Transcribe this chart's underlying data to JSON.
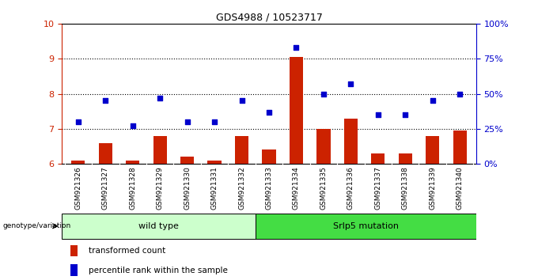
{
  "title": "GDS4988 / 10523717",
  "samples": [
    "GSM921326",
    "GSM921327",
    "GSM921328",
    "GSM921329",
    "GSM921330",
    "GSM921331",
    "GSM921332",
    "GSM921333",
    "GSM921334",
    "GSM921335",
    "GSM921336",
    "GSM921337",
    "GSM921338",
    "GSM921339",
    "GSM921340"
  ],
  "bar_values": [
    6.1,
    6.6,
    6.1,
    6.8,
    6.2,
    6.1,
    6.8,
    6.4,
    9.05,
    7.0,
    7.3,
    6.3,
    6.3,
    6.8,
    6.95
  ],
  "scatter_pct": [
    30,
    45,
    27,
    47,
    30,
    30,
    45,
    37,
    83,
    50,
    57,
    35,
    35,
    45,
    50
  ],
  "bar_color": "#cc2200",
  "scatter_color": "#0000cc",
  "ylim_left": [
    6,
    10
  ],
  "ylim_right": [
    0,
    100
  ],
  "yticks_left": [
    6,
    7,
    8,
    9,
    10
  ],
  "yticks_right": [
    0,
    25,
    50,
    75,
    100
  ],
  "ytick_labels_right": [
    "0%",
    "25%",
    "50%",
    "75%",
    "100%"
  ],
  "groups": [
    {
      "label": "wild type",
      "start": 0,
      "end": 7,
      "color": "#ccffcc"
    },
    {
      "label": "Srlp5 mutation",
      "start": 7,
      "end": 15,
      "color": "#44dd44"
    }
  ],
  "group_label_prefix": "genotype/variation",
  "legend_bar_label": "transformed count",
  "legend_scatter_label": "percentile rank within the sample",
  "grid_yticks": [
    7,
    8,
    9
  ],
  "tick_label_color_left": "#cc2200",
  "tick_label_color_right": "#0000cc",
  "sample_bg_color": "#c8c8c8",
  "sample_border_color": "#888888"
}
